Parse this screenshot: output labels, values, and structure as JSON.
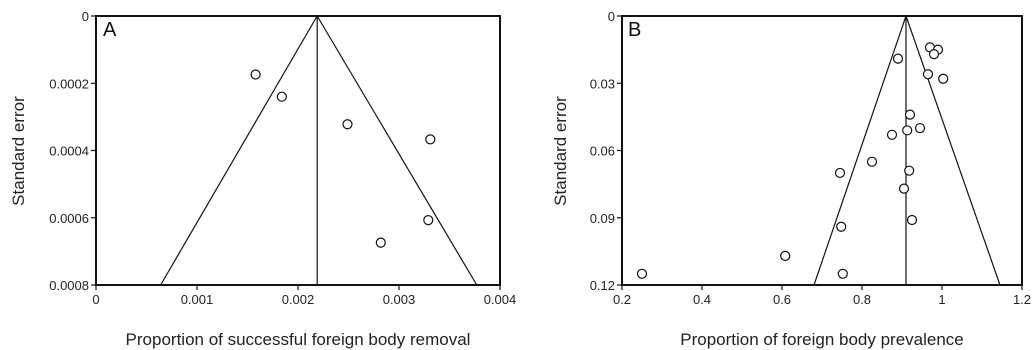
{
  "chart_data": [
    {
      "type": "scatter",
      "panel_label": "A",
      "xlabel": "Proportion of successful foreign body removal",
      "ylabel": "Standard error",
      "xlim": [
        0,
        0.004
      ],
      "ylim": [
        0,
        0.0008
      ],
      "y_inverted": true,
      "x_ticks": [
        "0",
        "0.001",
        "0.002",
        "0.003",
        "0.004"
      ],
      "x_tick_values": [
        0,
        0.001,
        0.002,
        0.003,
        0.004
      ],
      "y_ticks": [
        "0",
        "0.0002",
        "0.0004",
        "0.0006",
        "0.0008"
      ],
      "y_tick_values": [
        0,
        0.0002,
        0.0004,
        0.0006,
        0.0008
      ],
      "pooled_estimate": 0.00219,
      "funnel": {
        "apex": [
          0.00219,
          0
        ],
        "base_left": [
          0.00064,
          0.0008
        ],
        "base_right": [
          0.00377,
          0.0008
        ]
      },
      "points": [
        {
          "x": 0.00158,
          "y": 0.000174
        },
        {
          "x": 0.00184,
          "y": 0.00024
        },
        {
          "x": 0.00249,
          "y": 0.000322
        },
        {
          "x": 0.00331,
          "y": 0.000367
        },
        {
          "x": 0.00329,
          "y": 0.000607
        },
        {
          "x": 0.00282,
          "y": 0.000674
        }
      ],
      "grid": false
    },
    {
      "type": "scatter",
      "panel_label": "B",
      "xlabel": "Proportion of foreign body prevalence",
      "ylabel": "Standard error",
      "xlim": [
        0.2,
        1.2
      ],
      "ylim": [
        0,
        0.12
      ],
      "y_inverted": true,
      "x_ticks": [
        "0.2",
        "0.4",
        "0.6",
        "0.8",
        "1",
        "1.2"
      ],
      "x_tick_values": [
        0.2,
        0.4,
        0.6,
        0.8,
        1.0,
        1.2
      ],
      "y_ticks": [
        "0",
        "0.03",
        "0.06",
        "0.09",
        "0.12"
      ],
      "y_tick_values": [
        0,
        0.03,
        0.06,
        0.09,
        0.12
      ],
      "pooled_estimate": 0.91,
      "funnel": {
        "apex": [
          0.91,
          0
        ],
        "base_left": [
          0.68,
          0.12
        ],
        "base_right": [
          1.145,
          0.12
        ]
      },
      "points": [
        {
          "x": 0.97,
          "y": 0.014
        },
        {
          "x": 0.99,
          "y": 0.015
        },
        {
          "x": 0.98,
          "y": 0.017
        },
        {
          "x": 0.89,
          "y": 0.019
        },
        {
          "x": 0.965,
          "y": 0.026
        },
        {
          "x": 1.003,
          "y": 0.028
        },
        {
          "x": 0.92,
          "y": 0.044
        },
        {
          "x": 0.945,
          "y": 0.05
        },
        {
          "x": 0.913,
          "y": 0.051
        },
        {
          "x": 0.875,
          "y": 0.053
        },
        {
          "x": 0.825,
          "y": 0.065
        },
        {
          "x": 0.918,
          "y": 0.069
        },
        {
          "x": 0.745,
          "y": 0.07
        },
        {
          "x": 0.905,
          "y": 0.077
        },
        {
          "x": 0.925,
          "y": 0.091
        },
        {
          "x": 0.748,
          "y": 0.094
        },
        {
          "x": 0.608,
          "y": 0.107
        },
        {
          "x": 0.25,
          "y": 0.115
        },
        {
          "x": 0.752,
          "y": 0.115
        }
      ],
      "grid": false
    }
  ]
}
